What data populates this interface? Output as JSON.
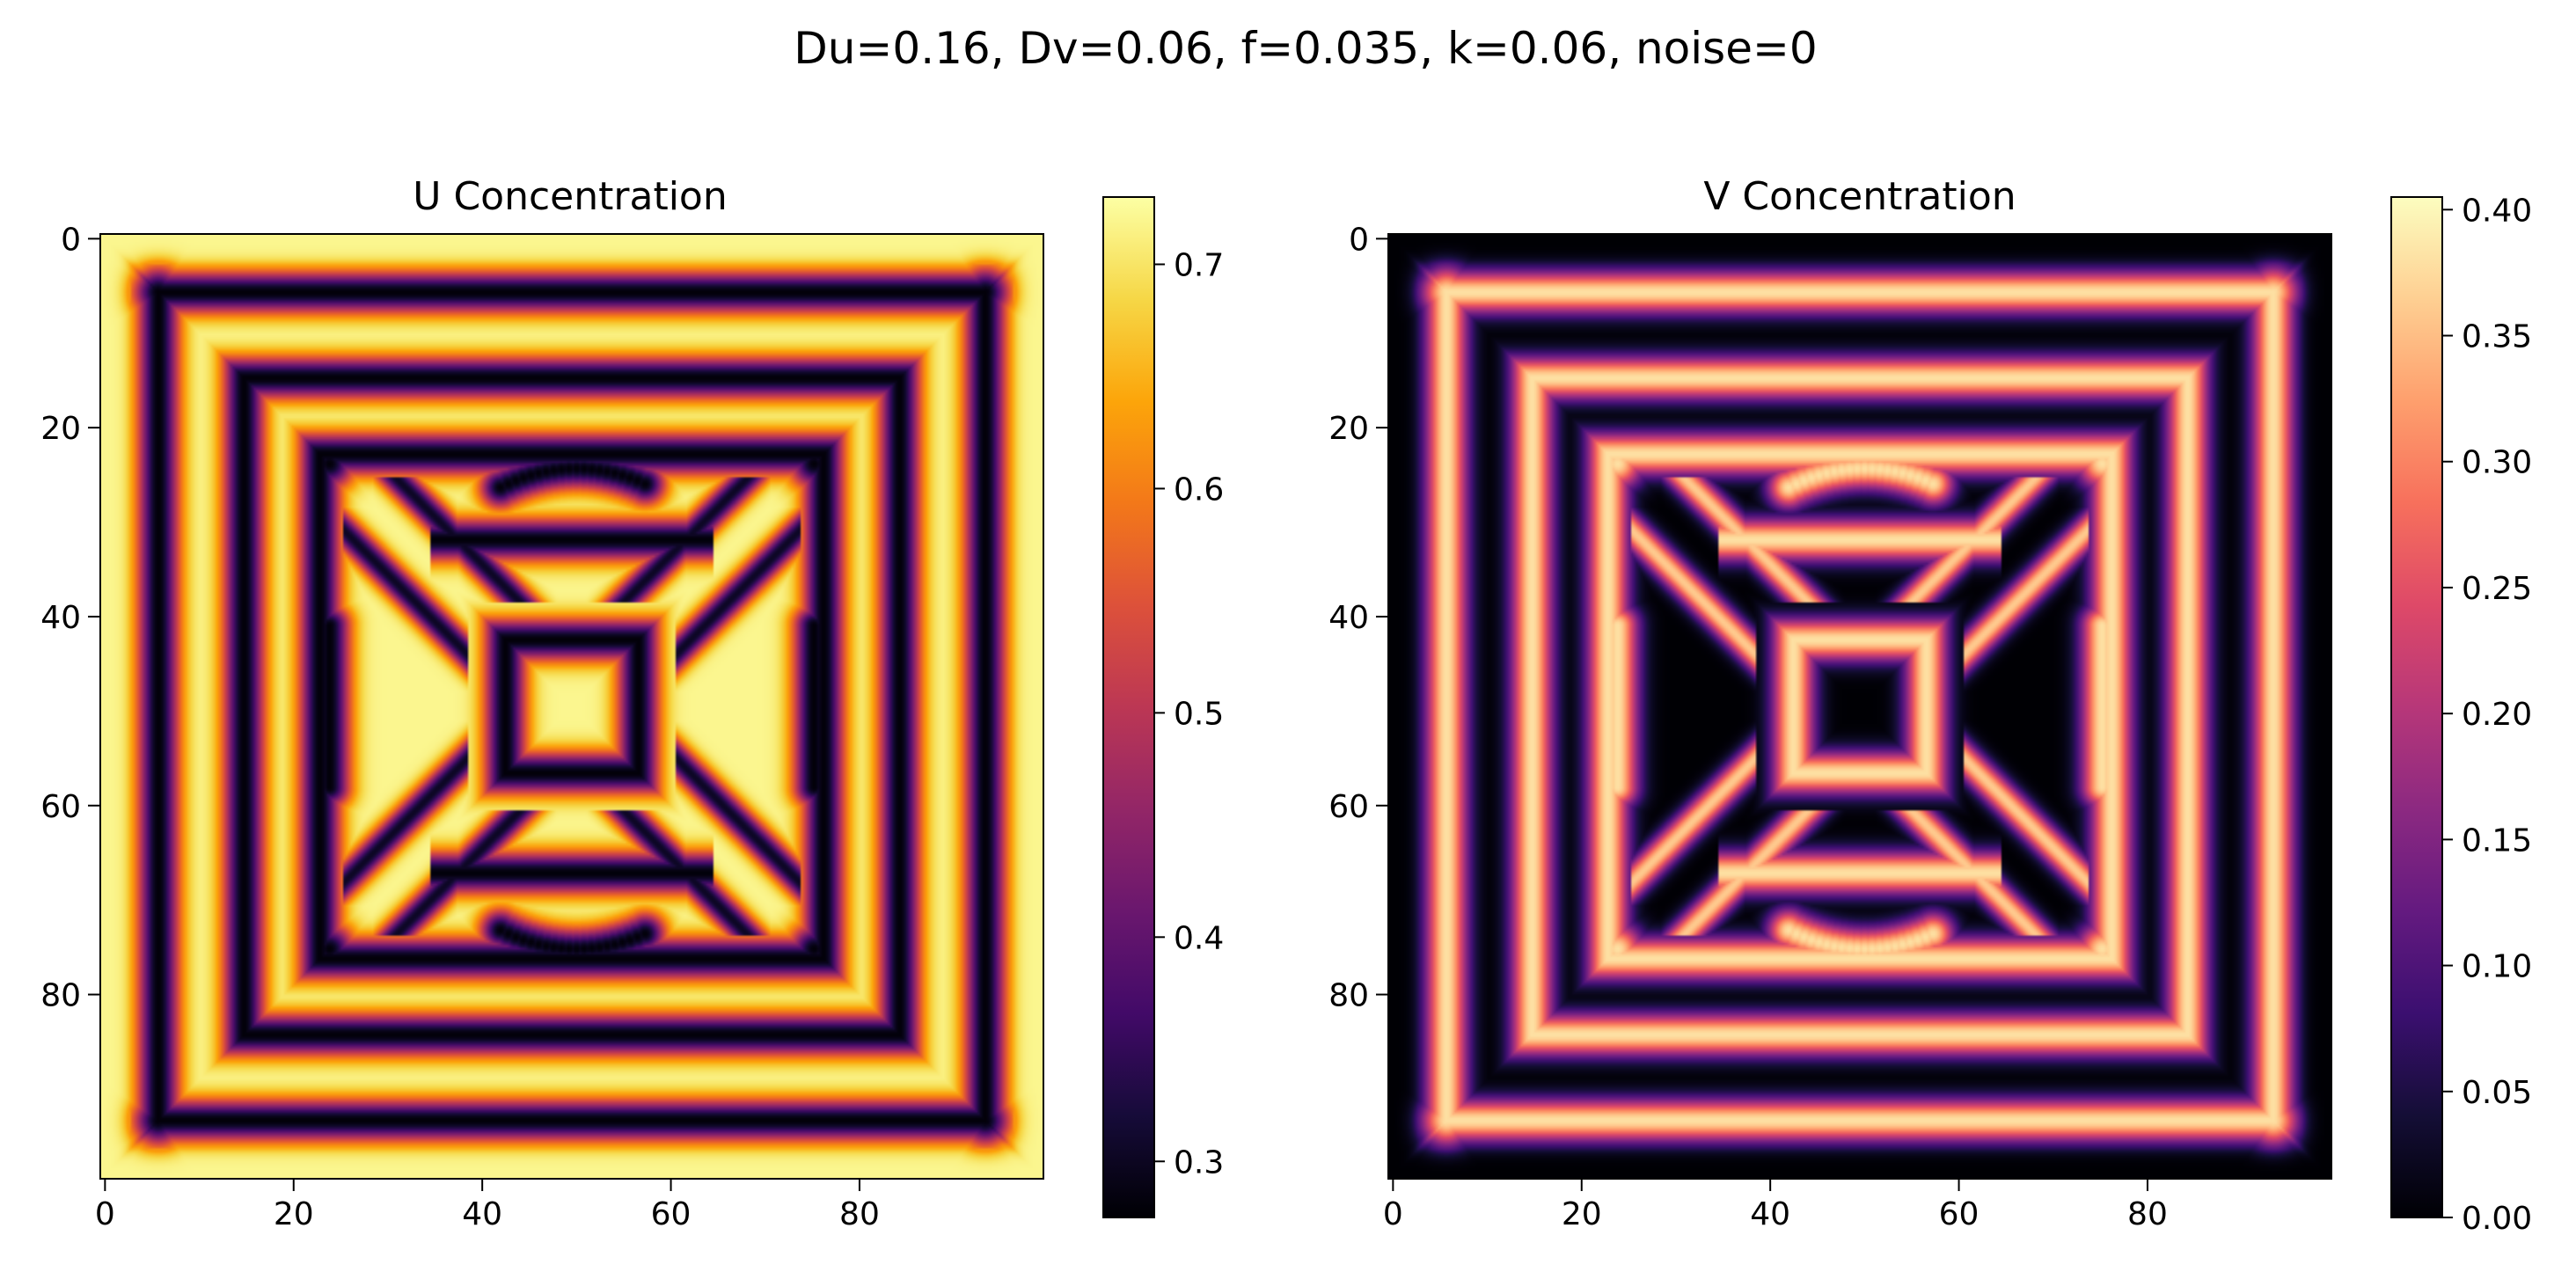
{
  "figure": {
    "suptitle": "Du=0.16, Dv=0.06, f=0.035, k=0.06, noise=0"
  },
  "chart_data": [
    {
      "type": "heatmap",
      "title": "U Concentration",
      "colormap": "inferno",
      "xlim": [
        -0.5,
        99.5
      ],
      "ylim": [
        99.5,
        -0.5
      ],
      "x_ticks": [
        "0",
        "20",
        "40",
        "60",
        "80"
      ],
      "y_ticks": [
        "0",
        "20",
        "40",
        "60",
        "80"
      ],
      "colorbar": {
        "range": [
          0.275,
          0.73
        ],
        "ticks": [
          "0.3",
          "0.4",
          "0.5",
          "0.6",
          "0.7"
        ]
      },
      "grid": false,
      "pattern": {
        "description_for_render": "Gray-Scott reaction-diffusion steady state on 100x100 grid; concentric square rings with central spot and diagonal arms",
        "high_value": 0.72,
        "low_value": 0.28
      }
    },
    {
      "type": "heatmap",
      "title": "V Concentration",
      "colormap": "magma",
      "xlim": [
        -0.5,
        99.5
      ],
      "ylim": [
        99.5,
        -0.5
      ],
      "x_ticks": [
        "0",
        "20",
        "40",
        "60",
        "80"
      ],
      "y_ticks": [
        "0",
        "20",
        "40",
        "60",
        "80"
      ],
      "colorbar": {
        "range": [
          0.0,
          0.405
        ],
        "ticks": [
          "0.00",
          "0.05",
          "0.10",
          "0.15",
          "0.20",
          "0.25",
          "0.30",
          "0.35",
          "0.40"
        ]
      },
      "grid": false,
      "pattern": {
        "high_value": 0.38,
        "low_value": 0.0
      }
    }
  ]
}
